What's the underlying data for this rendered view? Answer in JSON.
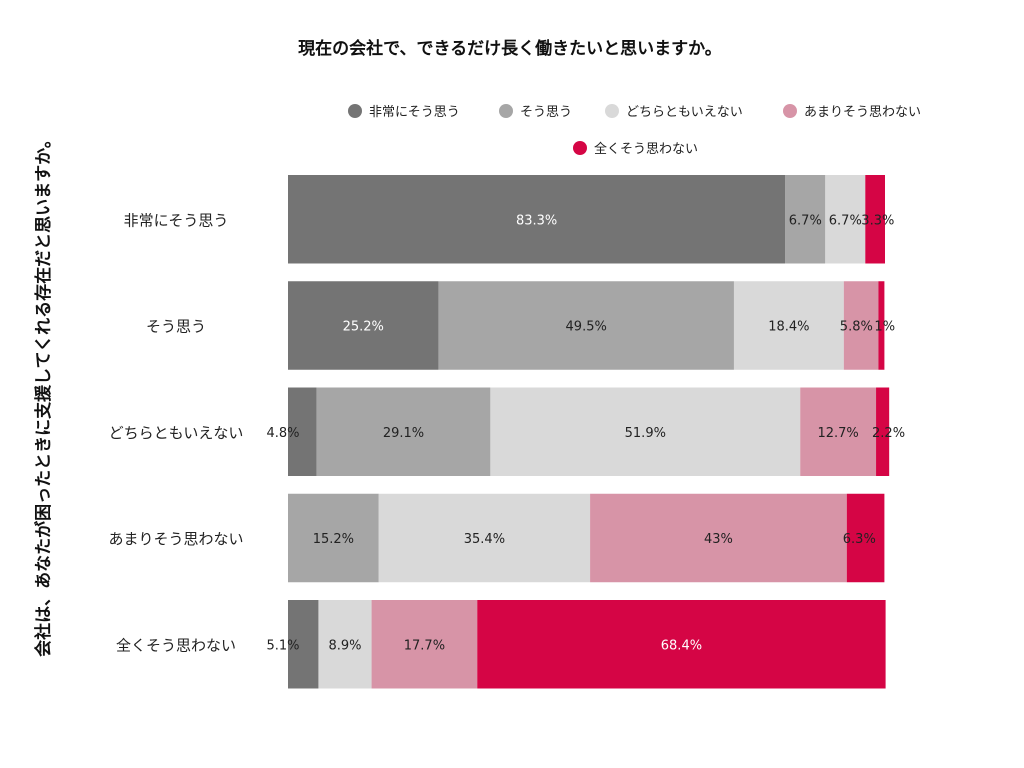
{
  "chart_data": {
    "type": "bar",
    "orientation": "horizontal",
    "stacked": true,
    "percent": true,
    "title": "現在の会社で、できるだけ長く働きたいと思いますか。",
    "ylabel": "会社は、あなたが困ったときに支援してくれる存在だと思いますか。",
    "xlabel": "",
    "xlim": [
      0,
      100
    ],
    "legend_position": "top-right",
    "grid": false,
    "categories": [
      "非常にそう思う",
      "そう思う",
      "どちらともいえない",
      "あまりそう思わない",
      "全くそう思わない"
    ],
    "series": [
      {
        "name": "非常にそう思う",
        "color": "#747474",
        "values": [
          83.3,
          25.2,
          4.8,
          0,
          5.1
        ],
        "labels": [
          "83.3%",
          "25.2%",
          "4.8%",
          "",
          "5.1%"
        ]
      },
      {
        "name": "そう思う",
        "color": "#a6a6a6",
        "values": [
          6.7,
          49.5,
          29.1,
          15.2,
          0
        ],
        "labels": [
          "6.7%",
          "49.5%",
          "29.1%",
          "15.2%",
          ""
        ]
      },
      {
        "name": "どちらともいえない",
        "color": "#d9d9d9",
        "values": [
          6.7,
          18.4,
          51.9,
          35.4,
          8.9
        ],
        "labels": [
          "6.7%",
          "18.4%",
          "51.9%",
          "35.4%",
          "8.9%"
        ]
      },
      {
        "name": "あまりそう思わない",
        "color": "#d794a7",
        "values": [
          0,
          5.8,
          12.7,
          43,
          17.7
        ],
        "labels": [
          "",
          "5.8%",
          "12.7%",
          "43%",
          "17.7%"
        ]
      },
      {
        "name": "全くそう思わない",
        "color": "#d50545",
        "values": [
          3.3,
          1,
          2.2,
          6.3,
          68.4
        ],
        "labels": [
          "3.3%",
          "1%",
          "2.2%",
          "6.3%",
          "68.4%"
        ]
      }
    ]
  }
}
